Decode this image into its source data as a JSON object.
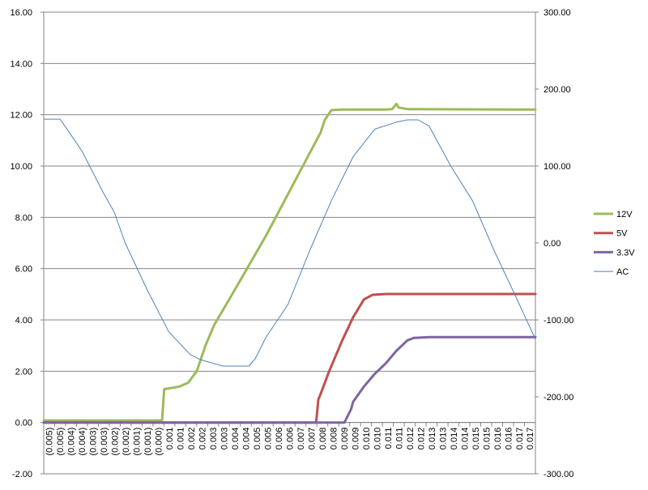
{
  "chart_data": {
    "type": "line",
    "title": "",
    "xlabel": "",
    "ylabel": "",
    "grid": true,
    "legend_position": "right",
    "x_tick_labels": [
      "(0.005)",
      "(0.005)",
      "(0.004)",
      "(0.004)",
      "(0.003)",
      "(0.003)",
      "(0.002)",
      "(0.002)",
      "(0.001)",
      "(0.001)",
      "(0.000)",
      "0.001",
      "0.001",
      "0.002",
      "0.002",
      "0.003",
      "0.003",
      "0.004",
      "0.004",
      "0.005",
      "0.005",
      "0.006",
      "0.006",
      "0.007",
      "0.007",
      "0.008",
      "0.008",
      "0.009",
      "0.009",
      "0.010",
      "0.010",
      "0.011",
      "0.011",
      "0.012",
      "0.012",
      "0.013",
      "0.013",
      "0.014",
      "0.014",
      "0.015",
      "0.015",
      "0.016",
      "0.016",
      "0.017",
      "0.017"
    ],
    "x_range": [
      -0.00525,
      0.0174
    ],
    "y_left": {
      "range": [
        -2,
        16
      ],
      "ticks": [
        16,
        14,
        12,
        10,
        8,
        6,
        4,
        2,
        0,
        -2
      ],
      "tick_labels": [
        "16.00",
        "14.00",
        "12.00",
        "10.00",
        "8.00",
        "6.00",
        "4.00",
        "2.00",
        "0.00",
        "-2.00"
      ]
    },
    "y_right": {
      "range": [
        -300,
        300
      ],
      "ticks": [
        300,
        200,
        100,
        0,
        -100,
        -200,
        -300
      ],
      "tick_labels": [
        "300.00",
        "200.00",
        "100.00",
        "0.00",
        "-100.00",
        "-200.00",
        "-300.00"
      ]
    },
    "series": [
      {
        "name": "12V",
        "axis": "left",
        "color": "#9BBB59",
        "points": [
          [
            -0.00525,
            0.08
          ],
          [
            0.0002,
            0.08
          ],
          [
            0.0003,
            1.3
          ],
          [
            0.001,
            1.4
          ],
          [
            0.0014,
            1.55
          ],
          [
            0.0018,
            2.0
          ],
          [
            0.0022,
            3.0
          ],
          [
            0.0026,
            3.8
          ],
          [
            0.0035,
            5.1
          ],
          [
            0.005,
            7.3
          ],
          [
            0.006,
            8.9
          ],
          [
            0.0075,
            11.3
          ],
          [
            0.0077,
            11.8
          ],
          [
            0.008,
            12.18
          ],
          [
            0.0085,
            12.2
          ],
          [
            0.0105,
            12.2
          ],
          [
            0.0108,
            12.22
          ],
          [
            0.011,
            12.42
          ],
          [
            0.0111,
            12.28
          ],
          [
            0.0115,
            12.22
          ],
          [
            0.0174,
            12.2
          ]
        ]
      },
      {
        "name": "5V",
        "axis": "left",
        "color": "#C0504D",
        "points": [
          [
            -0.00525,
            0.0
          ],
          [
            0.0073,
            0.0
          ],
          [
            0.0074,
            0.9
          ],
          [
            0.0075,
            1.1
          ],
          [
            0.0079,
            2.0
          ],
          [
            0.0085,
            3.2
          ],
          [
            0.009,
            4.1
          ],
          [
            0.0095,
            4.8
          ],
          [
            0.0099,
            4.98
          ],
          [
            0.0105,
            5.01
          ],
          [
            0.0174,
            5.01
          ]
        ]
      },
      {
        "name": "3.3V",
        "axis": "left",
        "color": "#8064A2",
        "points": [
          [
            -0.00525,
            0.0
          ],
          [
            0.0086,
            0.0
          ],
          [
            0.0089,
            0.5
          ],
          [
            0.009,
            0.8
          ],
          [
            0.0095,
            1.4
          ],
          [
            0.01,
            1.9
          ],
          [
            0.0105,
            2.3
          ],
          [
            0.011,
            2.8
          ],
          [
            0.0115,
            3.2
          ],
          [
            0.0118,
            3.3
          ],
          [
            0.0125,
            3.33
          ],
          [
            0.0174,
            3.33
          ]
        ]
      },
      {
        "name": "AC",
        "axis": "right",
        "color": "#4F81BD",
        "points": [
          [
            -0.00525,
            161
          ],
          [
            -0.0045,
            161
          ],
          [
            -0.0044,
            157
          ],
          [
            -0.0035,
            120
          ],
          [
            -0.0025,
            65
          ],
          [
            -0.002,
            40
          ],
          [
            -0.0015,
            0
          ],
          [
            -0.0005,
            -60
          ],
          [
            0.0005,
            -115
          ],
          [
            0.0015,
            -145
          ],
          [
            0.002,
            -152
          ],
          [
            0.003,
            -160
          ],
          [
            0.0042,
            -160
          ],
          [
            0.0045,
            -150
          ],
          [
            0.005,
            -122
          ],
          [
            0.006,
            -80
          ],
          [
            0.007,
            -10
          ],
          [
            0.008,
            55
          ],
          [
            0.009,
            112
          ],
          [
            0.01,
            148
          ],
          [
            0.011,
            157
          ],
          [
            0.0115,
            160
          ],
          [
            0.012,
            160
          ],
          [
            0.0125,
            152
          ],
          [
            0.0135,
            100
          ],
          [
            0.0145,
            55
          ],
          [
            0.0155,
            -10
          ],
          [
            0.0165,
            -70
          ],
          [
            0.0174,
            -125
          ]
        ]
      }
    ]
  }
}
